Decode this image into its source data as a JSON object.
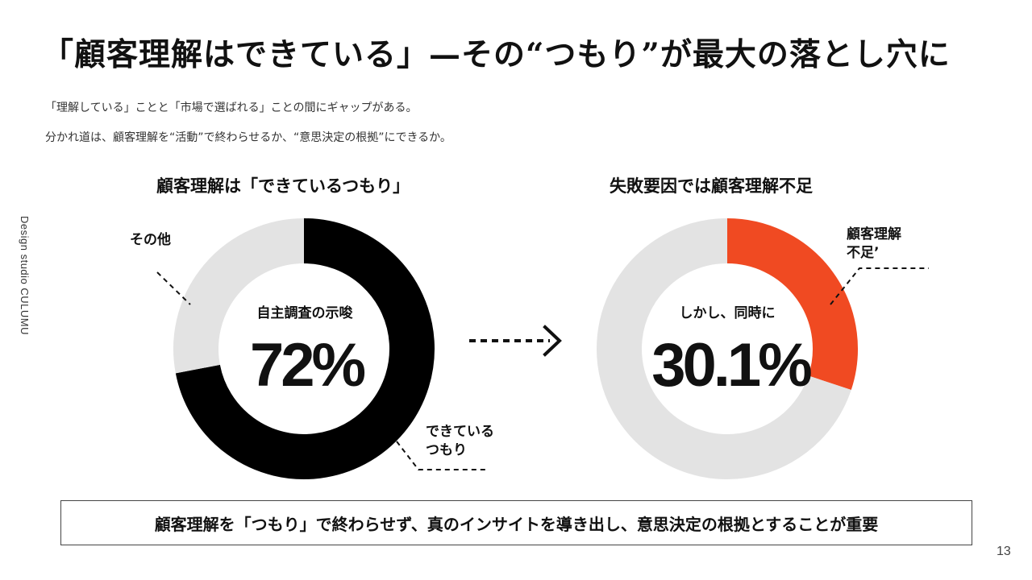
{
  "side_label": "Design studio CULUMU",
  "title": "「顧客理解はできている」—その“つもり”が最大の落とし穴に",
  "subtitle_lines": [
    "「理解している」ことと「市場で選ばれる」ことの間にギャップがある。",
    "分かれ道は、顧客理解を“活動”で終わらせるか、“意思決定の根拠”にできるか。"
  ],
  "colors": {
    "dark": "#000000",
    "light": "#e3e3e3",
    "accent": "#f04a22"
  },
  "chart_data": [
    {
      "type": "pie",
      "title": "顧客理解は「できているつもり」",
      "center_label": "自主調査の示唆",
      "center_value": "72%",
      "slices": [
        {
          "label": "できている\nつもり",
          "label_lines": [
            "できている",
            "つもり"
          ],
          "value": 72,
          "color": "#000000"
        },
        {
          "label": "その他",
          "label_lines": [
            "その他"
          ],
          "value": 28,
          "color": "#e3e3e3"
        }
      ]
    },
    {
      "type": "pie",
      "title": "失敗要因では顧客理解不足",
      "center_label": "しかし、同時に",
      "center_value": "30.1%",
      "slices": [
        {
          "label": "顧客理解\n不足’",
          "label_lines": [
            "顧客理解",
            "不足’"
          ],
          "value": 30.1,
          "color": "#f04a22"
        },
        {
          "label": "",
          "label_lines": [],
          "value": 69.9,
          "color": "#e3e3e3"
        }
      ]
    }
  ],
  "conclusion": "顧客理解を「つもり」で終わらせず、真のインサイトを導き出し、意思決定の根拠とすることが重要",
  "page_number": "13"
}
